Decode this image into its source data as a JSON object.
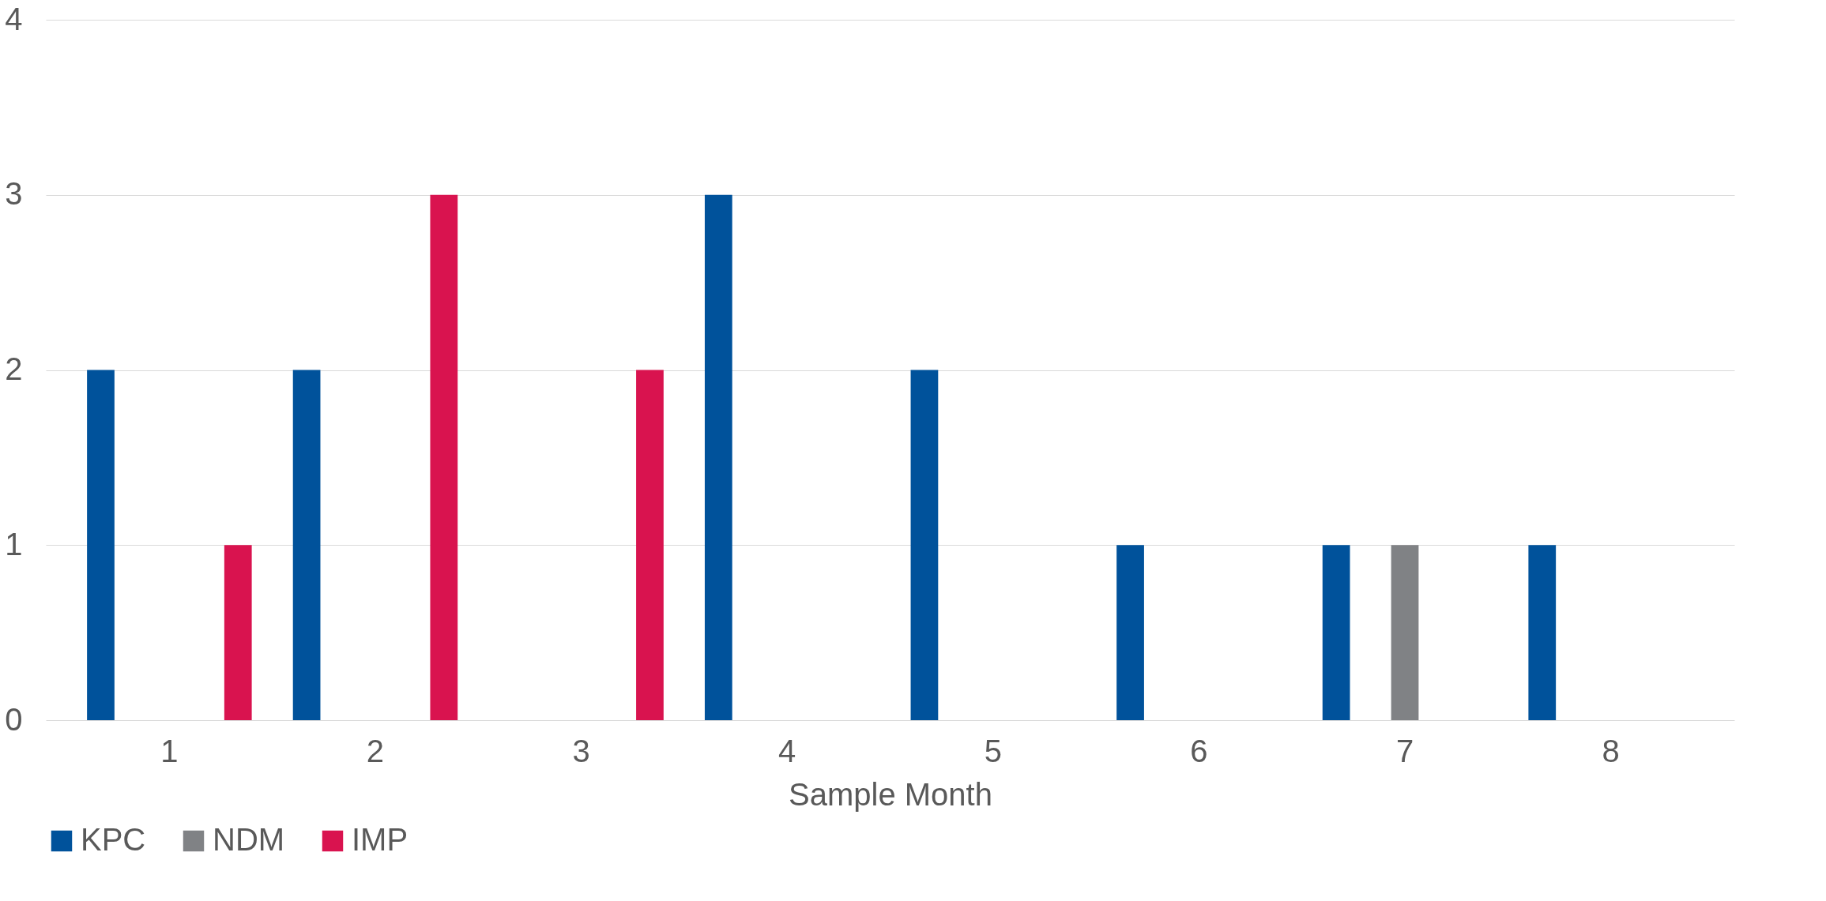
{
  "chart_data": {
    "type": "bar",
    "xlabel": "Sample Month",
    "categories": [
      "1",
      "2",
      "3",
      "4",
      "5",
      "6",
      "7",
      "8"
    ],
    "series": [
      {
        "name": "KPC",
        "color": "#00529b",
        "values": [
          2,
          2,
          0,
          3,
          2,
          1,
          1,
          1
        ]
      },
      {
        "name": "NDM",
        "color": "#808285",
        "values": [
          0,
          0,
          0,
          0,
          0,
          0,
          1,
          0
        ]
      },
      {
        "name": "IMP",
        "color": "#d9134f",
        "values": [
          1,
          3,
          2,
          0,
          0,
          0,
          0,
          0
        ]
      }
    ],
    "ylim": [
      0,
      4
    ],
    "yticks": [
      0,
      1,
      2,
      3,
      4
    ],
    "grid": "y",
    "legend": "bottom"
  }
}
